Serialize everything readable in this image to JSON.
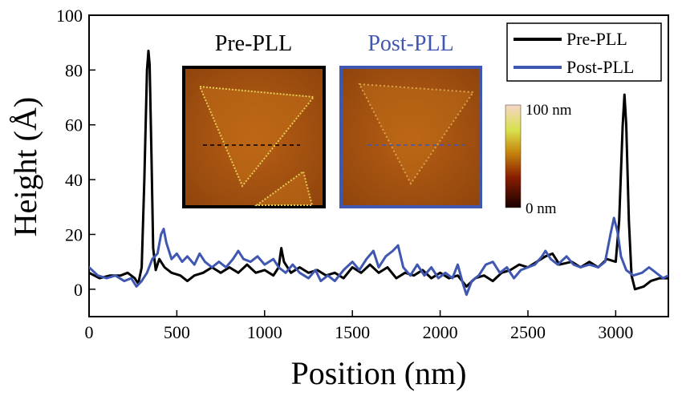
{
  "colors": {
    "pre_pll": "#000000",
    "post_pll": "#3f57b0",
    "afm_base": "#9a4c0e",
    "afm_flake": "#c9731e",
    "afm_edge": "#e9c84a"
  },
  "chart_data": {
    "type": "line",
    "xlabel": "Position (nm)",
    "ylabel": "Height (Å)",
    "xlim": [
      0,
      3300
    ],
    "ylim": [
      -10,
      100
    ],
    "xticks": [
      0,
      500,
      1000,
      1500,
      2000,
      2500,
      3000
    ],
    "yticks": [
      0,
      20,
      40,
      60,
      80,
      100
    ],
    "grid": false,
    "legend_position": "top-right",
    "series": [
      {
        "name": "Pre-PLL",
        "color": "#000000",
        "points": [
          [
            0,
            6
          ],
          [
            60,
            4
          ],
          [
            120,
            5
          ],
          [
            180,
            5
          ],
          [
            220,
            6
          ],
          [
            260,
            4
          ],
          [
            280,
            2
          ],
          [
            300,
            8
          ],
          [
            315,
            40
          ],
          [
            330,
            80
          ],
          [
            338,
            87
          ],
          [
            345,
            82
          ],
          [
            355,
            50
          ],
          [
            365,
            15
          ],
          [
            380,
            7
          ],
          [
            400,
            11
          ],
          [
            430,
            8
          ],
          [
            470,
            6
          ],
          [
            520,
            5
          ],
          [
            560,
            3
          ],
          [
            600,
            5
          ],
          [
            650,
            6
          ],
          [
            700,
            8
          ],
          [
            750,
            6
          ],
          [
            800,
            8
          ],
          [
            850,
            6
          ],
          [
            900,
            9
          ],
          [
            950,
            6
          ],
          [
            1000,
            7
          ],
          [
            1050,
            5
          ],
          [
            1080,
            8
          ],
          [
            1095,
            15
          ],
          [
            1110,
            10
          ],
          [
            1150,
            6
          ],
          [
            1200,
            8
          ],
          [
            1250,
            6
          ],
          [
            1300,
            7
          ],
          [
            1350,
            5
          ],
          [
            1400,
            6
          ],
          [
            1450,
            4
          ],
          [
            1500,
            8
          ],
          [
            1550,
            6
          ],
          [
            1600,
            9
          ],
          [
            1650,
            6
          ],
          [
            1700,
            8
          ],
          [
            1750,
            4
          ],
          [
            1800,
            6
          ],
          [
            1850,
            5
          ],
          [
            1900,
            7
          ],
          [
            1950,
            4
          ],
          [
            2000,
            6
          ],
          [
            2050,
            4
          ],
          [
            2100,
            5
          ],
          [
            2150,
            1
          ],
          [
            2200,
            4
          ],
          [
            2250,
            5
          ],
          [
            2300,
            3
          ],
          [
            2350,
            6
          ],
          [
            2400,
            7
          ],
          [
            2450,
            9
          ],
          [
            2500,
            8
          ],
          [
            2550,
            10
          ],
          [
            2600,
            12
          ],
          [
            2640,
            13
          ],
          [
            2680,
            9
          ],
          [
            2750,
            10
          ],
          [
            2800,
            8
          ],
          [
            2850,
            10
          ],
          [
            2900,
            8
          ],
          [
            2950,
            11
          ],
          [
            3000,
            10
          ],
          [
            3020,
            25
          ],
          [
            3040,
            60
          ],
          [
            3050,
            71
          ],
          [
            3060,
            60
          ],
          [
            3075,
            25
          ],
          [
            3090,
            5
          ],
          [
            3110,
            0
          ],
          [
            3160,
            1
          ],
          [
            3200,
            3
          ],
          [
            3250,
            4
          ],
          [
            3300,
            4
          ]
        ]
      },
      {
        "name": "Post-PLL",
        "color": "#3f57b0",
        "points": [
          [
            0,
            8
          ],
          [
            50,
            5
          ],
          [
            100,
            4
          ],
          [
            150,
            5
          ],
          [
            200,
            3
          ],
          [
            240,
            4
          ],
          [
            270,
            1
          ],
          [
            300,
            3
          ],
          [
            330,
            6
          ],
          [
            360,
            11
          ],
          [
            390,
            13
          ],
          [
            410,
            20
          ],
          [
            425,
            22
          ],
          [
            440,
            17
          ],
          [
            470,
            11
          ],
          [
            500,
            13
          ],
          [
            530,
            10
          ],
          [
            560,
            12
          ],
          [
            600,
            9
          ],
          [
            630,
            13
          ],
          [
            660,
            10
          ],
          [
            700,
            8
          ],
          [
            740,
            10
          ],
          [
            780,
            8
          ],
          [
            820,
            11
          ],
          [
            850,
            14
          ],
          [
            880,
            11
          ],
          [
            920,
            10
          ],
          [
            960,
            12
          ],
          [
            1000,
            9
          ],
          [
            1050,
            11
          ],
          [
            1080,
            8
          ],
          [
            1120,
            6
          ],
          [
            1160,
            9
          ],
          [
            1200,
            6
          ],
          [
            1250,
            4
          ],
          [
            1290,
            7
          ],
          [
            1320,
            3
          ],
          [
            1360,
            5
          ],
          [
            1400,
            3
          ],
          [
            1450,
            7
          ],
          [
            1500,
            10
          ],
          [
            1540,
            7
          ],
          [
            1580,
            11
          ],
          [
            1620,
            14
          ],
          [
            1650,
            8
          ],
          [
            1690,
            12
          ],
          [
            1730,
            14
          ],
          [
            1760,
            16
          ],
          [
            1790,
            8
          ],
          [
            1830,
            5
          ],
          [
            1870,
            9
          ],
          [
            1910,
            5
          ],
          [
            1950,
            8
          ],
          [
            1990,
            4
          ],
          [
            2030,
            6
          ],
          [
            2070,
            4
          ],
          [
            2100,
            9
          ],
          [
            2130,
            2
          ],
          [
            2150,
            -2
          ],
          [
            2180,
            3
          ],
          [
            2220,
            5
          ],
          [
            2260,
            9
          ],
          [
            2300,
            10
          ],
          [
            2340,
            6
          ],
          [
            2380,
            8
          ],
          [
            2420,
            4
          ],
          [
            2460,
            7
          ],
          [
            2500,
            8
          ],
          [
            2540,
            9
          ],
          [
            2580,
            12
          ],
          [
            2600,
            14
          ],
          [
            2630,
            11
          ],
          [
            2670,
            9
          ],
          [
            2720,
            12
          ],
          [
            2760,
            9
          ],
          [
            2800,
            8
          ],
          [
            2850,
            9
          ],
          [
            2900,
            8
          ],
          [
            2940,
            10
          ],
          [
            2970,
            20
          ],
          [
            2990,
            26
          ],
          [
            3010,
            21
          ],
          [
            3030,
            12
          ],
          [
            3060,
            7
          ],
          [
            3100,
            5
          ],
          [
            3150,
            6
          ],
          [
            3190,
            8
          ],
          [
            3230,
            6
          ],
          [
            3270,
            4
          ],
          [
            3300,
            5
          ]
        ]
      }
    ],
    "inset": {
      "pre_label": "Pre-PLL",
      "post_label": "Post-PLL",
      "colorbar_max_label": "100 nm",
      "colorbar_min_label": "0 nm"
    }
  }
}
